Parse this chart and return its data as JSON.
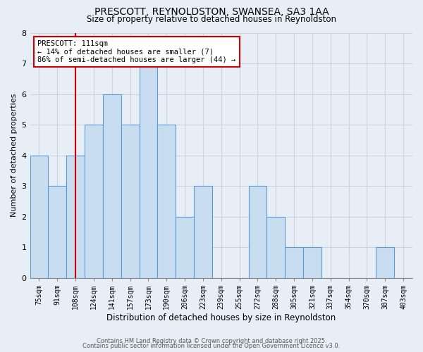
{
  "title": "PRESCOTT, REYNOLDSTON, SWANSEA, SA3 1AA",
  "subtitle": "Size of property relative to detached houses in Reynoldston",
  "xlabel": "Distribution of detached houses by size in Reynoldston",
  "ylabel": "Number of detached properties",
  "bar_labels": [
    "75sqm",
    "91sqm",
    "108sqm",
    "124sqm",
    "141sqm",
    "157sqm",
    "173sqm",
    "190sqm",
    "206sqm",
    "223sqm",
    "239sqm",
    "255sqm",
    "272sqm",
    "288sqm",
    "305sqm",
    "321sqm",
    "337sqm",
    "354sqm",
    "370sqm",
    "387sqm",
    "403sqm"
  ],
  "bar_values": [
    4,
    3,
    4,
    5,
    6,
    5,
    7,
    5,
    2,
    3,
    0,
    0,
    3,
    2,
    1,
    1,
    0,
    0,
    0,
    1,
    0
  ],
  "bar_color": "#c9ddf0",
  "bar_edge_color": "#5b9bd5",
  "prescott_line_x_label": "108sqm",
  "annotation_title": "PRESCOTT: 111sqm",
  "annotation_line1": "← 14% of detached houses are smaller (7)",
  "annotation_line2": "86% of semi-detached houses are larger (44) →",
  "annotation_box_color": "#ffffff",
  "annotation_box_edge_color": "#cc0000",
  "vline_color": "#cc0000",
  "ylim": [
    0,
    8
  ],
  "yticks": [
    0,
    1,
    2,
    3,
    4,
    5,
    6,
    7,
    8
  ],
  "grid_color": "#c8d4e3",
  "background_color": "#e8eef6",
  "footer_line1": "Contains HM Land Registry data © Crown copyright and database right 2025.",
  "footer_line2": "Contains public sector information licensed under the Open Government Licence v3.0."
}
